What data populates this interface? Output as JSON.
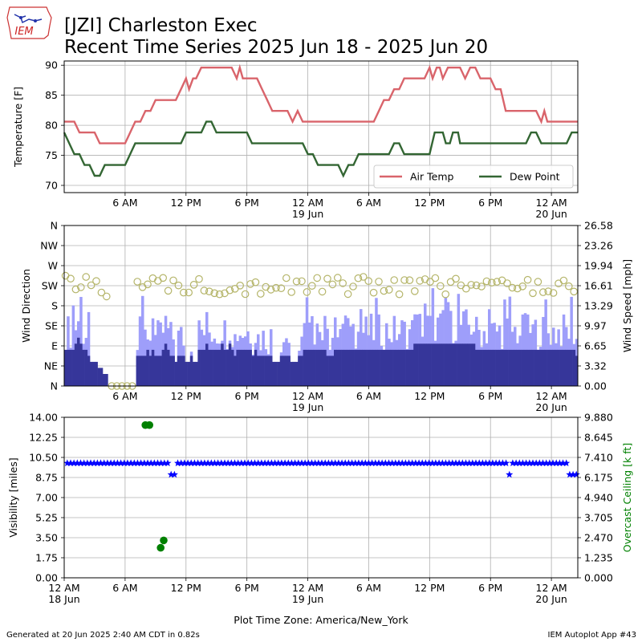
{
  "header": {
    "title_line1": "[JZI] Charleston Exec",
    "title_line2": "Recent Time Series 2025 Jun 18 - 2025 Jun 20",
    "logo_text": "IEM"
  },
  "footer": {
    "generated": "Generated at 20 Jun 2025 2:40 AM CDT in 0.82s",
    "app": "IEM Autoplot App #43"
  },
  "colors": {
    "air_temp": "#d9646b",
    "dew_point": "#336633",
    "wind_speed": "#36369a",
    "wind_gust": "#9e9efa",
    "wind_dir": "#b5b56a",
    "visibility": "#0000ff",
    "ceiling": "#008000"
  },
  "chart_data": [
    {
      "type": "line",
      "ylabel": "Temperature [F]",
      "ylim": [
        68.8,
        90.7
      ],
      "yticks": [
        "70",
        "75",
        "80",
        "85",
        "90"
      ],
      "ytick_values": [
        70,
        75,
        80,
        85,
        90
      ],
      "xticks": [
        "6 AM",
        "12 PM",
        "6 PM",
        "12 AM",
        "6 AM",
        "12 PM",
        "6 PM",
        "12 AM"
      ],
      "xticks_sub": [
        "",
        "",
        "",
        "19 Jun",
        "",
        "",
        "",
        "20 Jun"
      ],
      "xtick_hours": [
        6,
        12,
        18,
        24,
        30,
        36,
        42,
        48
      ],
      "xlim_hours": [
        0,
        50.6
      ],
      "grid": true,
      "legend": {
        "placement": "lower right",
        "entries": [
          "Air Temp",
          "Dew Point"
        ]
      },
      "series": [
        {
          "name": "Air Temp",
          "points": [
            [
              0,
              80.6
            ],
            [
              1,
              80.6
            ],
            [
              1.5,
              78.8
            ],
            [
              3,
              78.8
            ],
            [
              3.5,
              77
            ],
            [
              5,
              77
            ],
            [
              6,
              77
            ],
            [
              6.5,
              78.8
            ],
            [
              7,
              80.6
            ],
            [
              7.5,
              80.6
            ],
            [
              8,
              82.4
            ],
            [
              8.5,
              82.4
            ],
            [
              9,
              84.2
            ],
            [
              10,
              84.2
            ],
            [
              11,
              84.2
            ],
            [
              11.5,
              86
            ],
            [
              12,
              87.8
            ],
            [
              12.3,
              86
            ],
            [
              12.7,
              87.8
            ],
            [
              13,
              87.8
            ],
            [
              13.5,
              89.6
            ],
            [
              15,
              89.6
            ],
            [
              16,
              89.6
            ],
            [
              16.5,
              89.6
            ],
            [
              17,
              87.8
            ],
            [
              17.3,
              89.6
            ],
            [
              17.6,
              87.8
            ],
            [
              19,
              87.8
            ],
            [
              19.5,
              86
            ],
            [
              20,
              84.2
            ],
            [
              20.5,
              82.4
            ],
            [
              21,
              82.4
            ],
            [
              22,
              82.4
            ],
            [
              22.5,
              80.6
            ],
            [
              23,
              82.4
            ],
            [
              23.5,
              80.6
            ],
            [
              24,
              80.6
            ],
            [
              25,
              80.6
            ],
            [
              30,
              80.6
            ],
            [
              30.5,
              80.6
            ],
            [
              31,
              82.4
            ],
            [
              31.5,
              84.2
            ],
            [
              32,
              84.2
            ],
            [
              32.5,
              86
            ],
            [
              33,
              86
            ],
            [
              33.5,
              87.8
            ],
            [
              35,
              87.8
            ],
            [
              35.5,
              87.8
            ],
            [
              36,
              89.6
            ],
            [
              36.3,
              87.8
            ],
            [
              36.7,
              89.6
            ],
            [
              37,
              89.6
            ],
            [
              37.3,
              87.8
            ],
            [
              37.8,
              89.6
            ],
            [
              39,
              89.6
            ],
            [
              39.5,
              87.8
            ],
            [
              40,
              89.6
            ],
            [
              40.5,
              89.6
            ],
            [
              41,
              87.8
            ],
            [
              42,
              87.8
            ],
            [
              42.5,
              86
            ],
            [
              43,
              86
            ],
            [
              43.5,
              82.4
            ],
            [
              44,
              82.4
            ],
            [
              46,
              82.4
            ],
            [
              46.5,
              82.4
            ],
            [
              47,
              80.6
            ],
            [
              47.3,
              82.4
            ],
            [
              47.6,
              80.6
            ],
            [
              49,
              80.6
            ],
            [
              50.6,
              80.6
            ]
          ]
        },
        {
          "name": "Dew Point",
          "points": [
            [
              0,
              78.8
            ],
            [
              0.5,
              77
            ],
            [
              1,
              75.2
            ],
            [
              1.5,
              75.2
            ],
            [
              2,
              73.4
            ],
            [
              2.5,
              73.4
            ],
            [
              3,
              71.6
            ],
            [
              3.5,
              71.6
            ],
            [
              4,
              73.4
            ],
            [
              5,
              73.4
            ],
            [
              6,
              73.4
            ],
            [
              6.5,
              75.2
            ],
            [
              7,
              77
            ],
            [
              8,
              77
            ],
            [
              11,
              77
            ],
            [
              11.5,
              77
            ],
            [
              12,
              78.8
            ],
            [
              13,
              78.8
            ],
            [
              13.5,
              78.8
            ],
            [
              14,
              80.6
            ],
            [
              14.5,
              80.6
            ],
            [
              15,
              78.8
            ],
            [
              16,
              78.8
            ],
            [
              18,
              78.8
            ],
            [
              18.5,
              77
            ],
            [
              19,
              77
            ],
            [
              23,
              77
            ],
            [
              23.5,
              77
            ],
            [
              24,
              75.2
            ],
            [
              24.5,
              75.2
            ],
            [
              25,
              73.4
            ],
            [
              27,
              73.4
            ],
            [
              27.5,
              71.6
            ],
            [
              28,
              73.4
            ],
            [
              28.5,
              73.4
            ],
            [
              29,
              75.2
            ],
            [
              30,
              75.2
            ],
            [
              32,
              75.2
            ],
            [
              32.5,
              77
            ],
            [
              33,
              77
            ],
            [
              33.5,
              75.2
            ],
            [
              35,
              75.2
            ],
            [
              36,
              75.2
            ],
            [
              36.5,
              78.8
            ],
            [
              37.3,
              78.8
            ],
            [
              37.6,
              77
            ],
            [
              38,
              77
            ],
            [
              38.3,
              78.8
            ],
            [
              38.8,
              78.8
            ],
            [
              39,
              77
            ],
            [
              41,
              77
            ],
            [
              42,
              77
            ],
            [
              45,
              77
            ],
            [
              45.5,
              77
            ],
            [
              46,
              78.8
            ],
            [
              46.5,
              78.8
            ],
            [
              47,
              77
            ],
            [
              49,
              77
            ],
            [
              49.5,
              77
            ],
            [
              50,
              78.8
            ],
            [
              50.6,
              78.8
            ]
          ]
        }
      ]
    },
    {
      "type": "bar",
      "ylabel": "Wind Direction",
      "y2label": "Wind Speed [mph]",
      "ylim": [
        0,
        360
      ],
      "yticks": [
        "N",
        "NE",
        "E",
        "SE",
        "S",
        "SW",
        "W",
        "NW",
        "N"
      ],
      "ytick_values": [
        0,
        45,
        90,
        135,
        180,
        225,
        270,
        315,
        360
      ],
      "y2lim": [
        0,
        26.58
      ],
      "y2ticks": [
        "0.00",
        "3.32",
        "6.65",
        "9.97",
        "13.29",
        "16.61",
        "19.94",
        "23.26",
        "26.58"
      ],
      "xticks": [
        "6 AM",
        "12 PM",
        "6 PM",
        "12 AM",
        "6 AM",
        "12 PM",
        "6 PM",
        "12 AM"
      ],
      "xticks_sub": [
        "",
        "",
        "",
        "19 Jun",
        "",
        "",
        "",
        "20 Jun"
      ],
      "xtick_hours": [
        6,
        12,
        18,
        24,
        30,
        36,
        42,
        48
      ],
      "xlim_hours": [
        0,
        50.6
      ],
      "grid": true,
      "series": [
        {
          "name": "Wind Speed",
          "values": [
            6,
            6,
            6,
            6,
            7,
            8,
            7,
            6,
            6,
            5,
            4,
            4,
            4,
            3,
            3,
            2,
            2,
            0,
            0,
            0,
            0,
            0,
            0,
            0,
            0,
            0,
            0,
            0,
            5,
            5,
            5,
            5,
            6,
            5,
            6,
            5,
            5,
            5,
            6,
            7,
            6,
            5,
            5,
            4,
            5,
            5,
            5,
            4,
            4,
            5,
            4,
            4,
            6,
            6,
            6,
            7,
            6,
            6,
            6,
            6,
            6,
            7,
            6,
            6,
            7,
            6,
            5,
            6,
            6,
            6,
            6,
            6,
            6,
            5,
            6,
            5,
            5,
            5,
            5,
            5,
            5,
            4,
            4,
            4,
            5,
            5,
            5,
            5,
            4,
            4,
            4,
            5,
            5,
            6,
            6,
            6,
            6,
            6,
            6,
            6,
            6,
            6,
            5,
            5,
            5,
            6,
            6,
            6,
            6,
            6,
            6,
            6,
            6,
            6,
            6,
            6,
            6,
            6,
            6,
            6,
            6,
            6,
            6,
            6,
            6,
            6,
            6,
            6,
            6,
            6,
            6,
            6,
            6,
            6,
            6,
            6,
            7,
            7,
            7,
            7,
            7,
            7,
            7,
            7,
            7,
            7,
            7,
            7,
            7,
            7,
            7,
            7,
            7,
            7,
            7,
            7,
            7,
            7,
            7,
            7,
            6,
            6,
            6,
            6,
            6,
            6,
            6,
            6,
            6,
            6,
            6,
            6,
            6,
            6,
            6,
            6,
            6,
            6,
            6,
            6,
            6,
            6,
            6,
            6,
            6,
            6,
            6,
            6,
            6,
            6,
            6,
            6,
            6,
            6,
            6,
            6,
            6,
            6,
            6,
            5
          ]
        },
        {
          "name": "Wind Gust",
          "values": []
        },
        {
          "name": "Wind Direction",
          "values": []
        }
      ]
    },
    {
      "type": "scatter",
      "ylabel": "Visibility [miles]",
      "y2label": "Overcast Ceiling [k ft]",
      "ylim": [
        0,
        14
      ],
      "yticks": [
        "0.00",
        "1.75",
        "3.50",
        "5.25",
        "7.00",
        "8.75",
        "10.50",
        "12.25",
        "14.00"
      ],
      "y2lim": [
        0,
        9.88
      ],
      "y2ticks": [
        "0.000",
        "1.235",
        "2.470",
        "3.705",
        "4.940",
        "6.175",
        "7.410",
        "8.645",
        "9.880"
      ],
      "xticks": [
        "12 AM",
        "6 AM",
        "12 PM",
        "6 PM",
        "12 AM",
        "6 AM",
        "12 PM",
        "6 PM",
        "12 AM"
      ],
      "xticks_sub": [
        "18 Jun",
        "",
        "",
        "",
        "19 Jun",
        "",
        "",
        "",
        "20 Jun"
      ],
      "xtick_hours": [
        0,
        6,
        12,
        18,
        24,
        30,
        36,
        42,
        48
      ],
      "xlim_hours": [
        0,
        50.6
      ],
      "xlabel": "Plot Time Zone: America/New_York",
      "grid": true,
      "series": [
        {
          "name": "Visibility",
          "exceptions": [
            [
              10.6,
              9
            ],
            [
              11,
              9
            ],
            [
              43.9,
              9
            ],
            [
              49.7,
              9
            ],
            [
              50.1,
              9
            ],
            [
              50.5,
              9
            ]
          ],
          "value": 10
        },
        {
          "name": "Overcast Ceiling",
          "points": [
            [
              8,
              9.4
            ],
            [
              8.4,
              9.4
            ],
            [
              9.5,
              1.85
            ],
            [
              9.8,
              2.3
            ]
          ]
        }
      ]
    }
  ]
}
